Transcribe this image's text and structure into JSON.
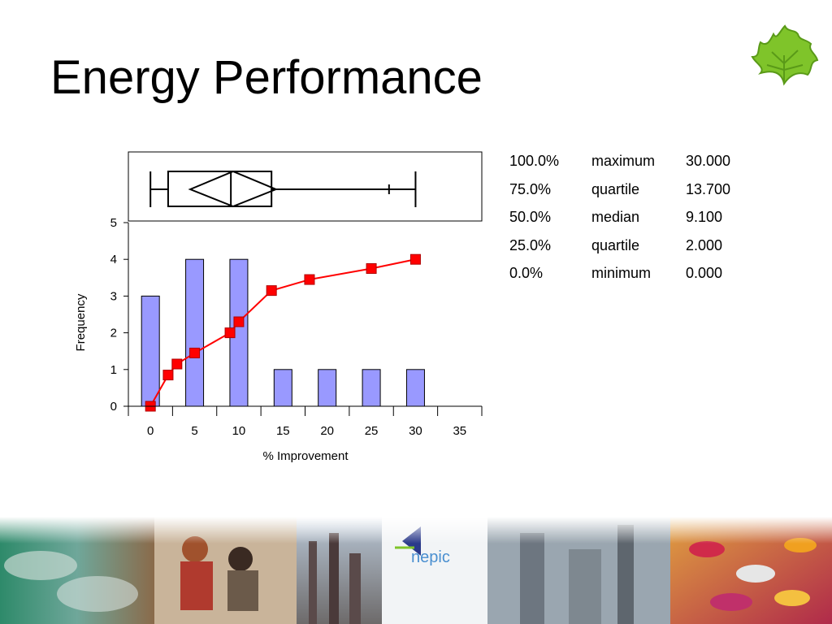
{
  "page": {
    "title": "Energy Performance"
  },
  "chart_data": {
    "type": "bar",
    "xlabel": "% Improvement",
    "ylabel": "Frequency",
    "xlim": [
      -2.5,
      37.5
    ],
    "ylim": [
      0,
      5
    ],
    "x_ticks": [
      0,
      5,
      10,
      15,
      20,
      25,
      30,
      35
    ],
    "y_ticks": [
      0,
      1,
      2,
      3,
      4,
      5
    ],
    "grid": false,
    "bars": [
      {
        "x": 0,
        "value": 3
      },
      {
        "x": 5,
        "value": 4
      },
      {
        "x": 10,
        "value": 4
      },
      {
        "x": 15,
        "value": 1
      },
      {
        "x": 20,
        "value": 1
      },
      {
        "x": 25,
        "value": 1
      },
      {
        "x": 30,
        "value": 1
      }
    ],
    "cumulative_line": {
      "points": [
        {
          "x": 0,
          "y": 0
        },
        {
          "x": 2,
          "y": 0.85
        },
        {
          "x": 3,
          "y": 1.15
        },
        {
          "x": 5,
          "y": 1.45
        },
        {
          "x": 9,
          "y": 2.0
        },
        {
          "x": 10,
          "y": 2.3
        },
        {
          "x": 13.7,
          "y": 3.15
        },
        {
          "x": 18,
          "y": 3.45
        },
        {
          "x": 25,
          "y": 3.75
        },
        {
          "x": 30,
          "y": 4.0
        }
      ]
    },
    "box_plot": {
      "minimum": 0,
      "q1": 2.0,
      "median": 9.1,
      "q3": 13.7,
      "maximum": 30,
      "mean_diamond": [
        4.5,
        14.2
      ],
      "tick_marks": [
        27
      ]
    },
    "colors": {
      "bar_fill": "#9999ff",
      "line": "#ff0000",
      "marker": "#ff0000"
    }
  },
  "stats_table": [
    {
      "pct": "100.0%",
      "label": "maximum",
      "value": "30.000"
    },
    {
      "pct": "75.0%",
      "label": "quartile",
      "value": "13.700"
    },
    {
      "pct": "50.0%",
      "label": "median",
      "value": "9.100"
    },
    {
      "pct": "25.0%",
      "label": "quartile",
      "value": "2.000"
    },
    {
      "pct": "0.0%",
      "label": "minimum",
      "value": "0.000"
    }
  ],
  "banner": {
    "logo_text": "nepic"
  }
}
